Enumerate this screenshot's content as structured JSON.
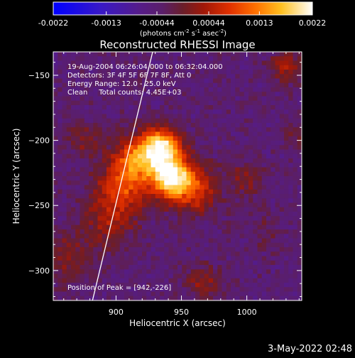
{
  "colorbar": {
    "tick_labels": [
      "-0.0022",
      "-0.0013",
      "-0.00044",
      "0.00044",
      "0.0013",
      "0.0022"
    ],
    "tick_values": [
      -0.0022,
      -0.0013,
      -0.00044,
      0.00044,
      0.0013,
      0.0022
    ],
    "range": [
      -0.0022,
      0.0022
    ],
    "colormap": "blue-purple-red-yellow-white"
  },
  "chart_data": {
    "type": "heatmap",
    "title": "Reconstructed RHESSI Image",
    "units_prefix": "(photons cm",
    "units_exp1": "-2",
    "units_mid": " s",
    "units_exp2": "-1",
    "units_mid2": " asec",
    "units_exp3": "-2",
    "units_suffix": ")",
    "xlabel": "Heliocentric X (arcsec)",
    "ylabel": "Heliocentric Y (arcsec)",
    "xlim": [
      852,
      1042
    ],
    "ylim": [
      -323,
      -132
    ],
    "x_ticks": [
      900,
      950,
      1000
    ],
    "y_ticks": [
      -150,
      -200,
      -250,
      -300
    ],
    "x_tick_labels": [
      "900",
      "950",
      "1000"
    ],
    "y_tick_labels": [
      "−150",
      "−200",
      "−250",
      "−300"
    ],
    "peak": [
      942,
      -226
    ],
    "limb_line": [
      [
        882,
        -323
      ],
      [
        928,
        -132
      ]
    ],
    "sources": [
      {
        "x": 935,
        "y": -205,
        "sigma": 10,
        "amp": 0.0022
      },
      {
        "x": 942,
        "y": -228,
        "sigma": 11,
        "amp": 0.0024
      },
      {
        "x": 917,
        "y": -213,
        "sigma": 12,
        "amp": 0.0015
      },
      {
        "x": 905,
        "y": -235,
        "sigma": 14,
        "amp": 0.0012
      },
      {
        "x": 960,
        "y": -238,
        "sigma": 13,
        "amp": 0.0011
      },
      {
        "x": 895,
        "y": -262,
        "sigma": 14,
        "amp": 0.0007
      },
      {
        "x": 862,
        "y": -290,
        "sigma": 14,
        "amp": 0.0006
      },
      {
        "x": 877,
        "y": -200,
        "sigma": 11,
        "amp": 0.0005
      },
      {
        "x": 1030,
        "y": -143,
        "sigma": 8,
        "amp": 0.0009
      },
      {
        "x": 1000,
        "y": -230,
        "sigma": 10,
        "amp": 0.0005
      },
      {
        "x": 1040,
        "y": -195,
        "sigma": 8,
        "amp": 0.0004
      },
      {
        "x": 967,
        "y": -310,
        "sigma": 10,
        "amp": 0.0006
      },
      {
        "x": 1013,
        "y": -270,
        "sigma": 9,
        "amp": 0.0003
      }
    ]
  },
  "info": {
    "line1": "19-Aug-2004 06:26:04.000 to 06:32:04.000",
    "line2": "Detectors: 3F 4F 5F 6F 7F 8F, Att 0",
    "line3": "Energy Range: 12.0 - 25.0 keV",
    "line4": "Clean     Total counts: 4.45E+03",
    "peak_text": "Position of Peak = [942,-226]"
  },
  "timestamp": "3-May-2022 02:48"
}
